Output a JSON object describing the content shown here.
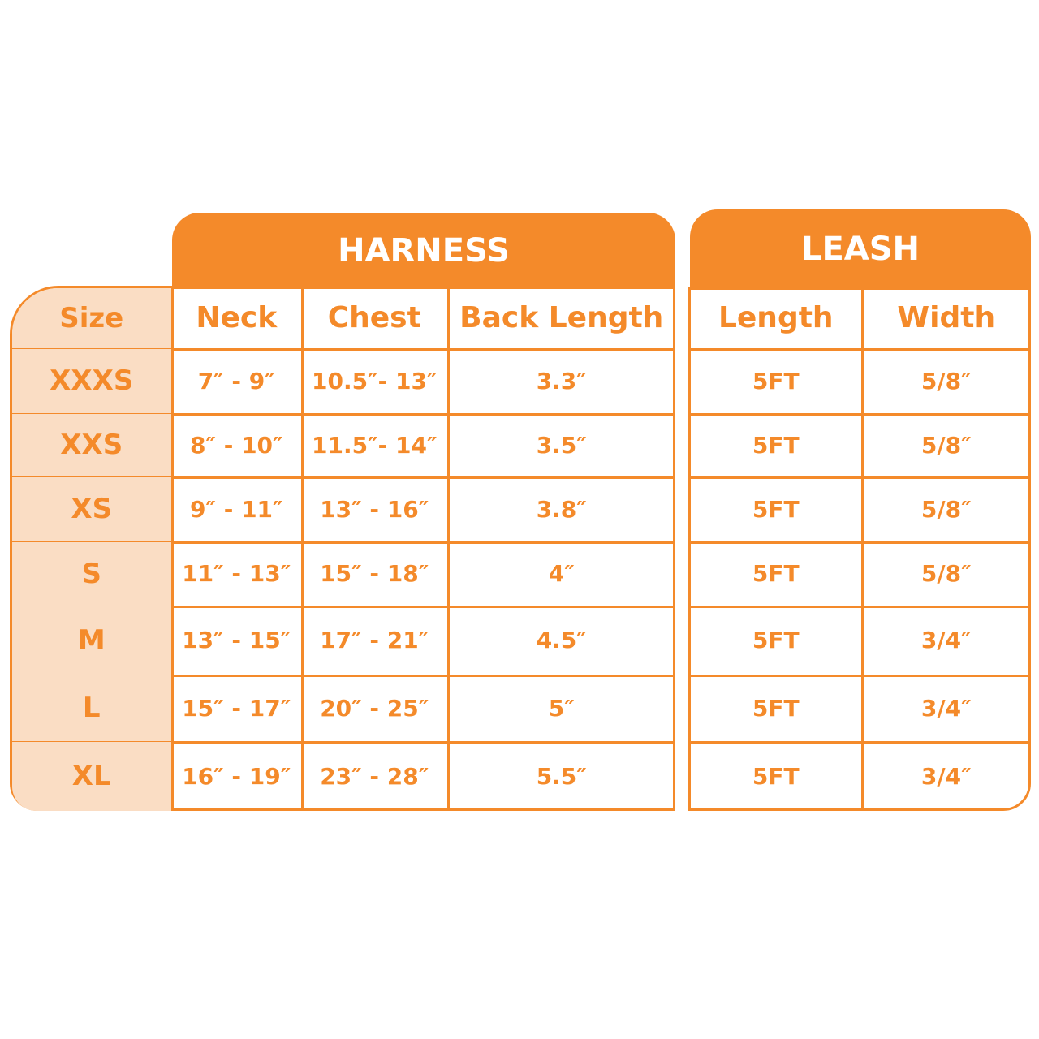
{
  "colors": {
    "accent": "#F48A2A",
    "size_column_bg": "#FADDC4"
  },
  "harness": {
    "title": "HARNESS",
    "headers": [
      "Size",
      "Neck",
      "Chest",
      "Back Length"
    ],
    "rows": [
      [
        "XXXS",
        "7″ - 9″",
        "10.5″- 13″",
        "3.3″"
      ],
      [
        "XXS",
        "8″ - 10″",
        "11.5″- 14″",
        "3.5″"
      ],
      [
        "XS",
        "9″ - 11″",
        "13″ - 16″",
        "3.8″"
      ],
      [
        "S",
        "11″ - 13″",
        "15″ - 18″",
        "4″"
      ],
      [
        "M",
        "13″ - 15″",
        "17″ - 21″",
        "4.5″"
      ],
      [
        "L",
        "15″ - 17″",
        "20″ - 25″",
        "5″"
      ],
      [
        "XL",
        "16″ - 19″",
        "23″ - 28″",
        "5.5″"
      ]
    ]
  },
  "leash": {
    "title": "LEASH",
    "headers": [
      "Length",
      "Width"
    ],
    "rows": [
      [
        "5FT",
        "5/8″"
      ],
      [
        "5FT",
        "5/8″"
      ],
      [
        "5FT",
        "5/8″"
      ],
      [
        "5FT",
        "5/8″"
      ],
      [
        "5FT",
        "3/4″"
      ],
      [
        "5FT",
        "3/4″"
      ],
      [
        "5FT",
        "3/4″"
      ]
    ]
  }
}
